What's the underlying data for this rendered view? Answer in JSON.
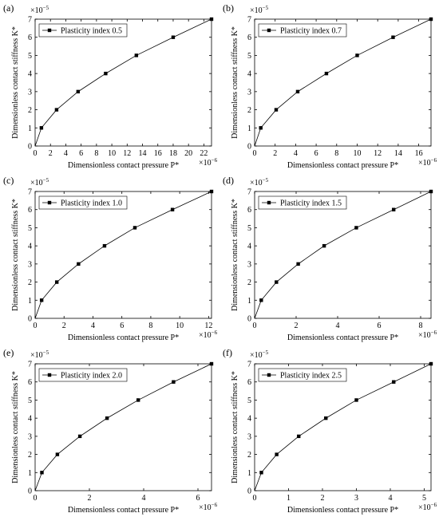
{
  "figure": {
    "panels": [
      "(a)",
      "(b)",
      "(c)",
      "(d)",
      "(e)",
      "(f)"
    ]
  },
  "chart_data": [
    {
      "panel": "(a)",
      "type": "line",
      "xlabel": "Dimensionless contact pressure P*",
      "ylabel": "Dimensionless contact stiffness K*",
      "x_multiplier": "×10",
      "x_exponent": "−6",
      "y_multiplier": "×10",
      "y_exponent": "−5",
      "xlim": [
        0,
        23
      ],
      "ylim": [
        0,
        7
      ],
      "xticks": [
        0,
        2,
        4,
        6,
        8,
        10,
        12,
        14,
        16,
        18,
        20,
        22
      ],
      "yticks": [
        0,
        1,
        2,
        3,
        4,
        5,
        6,
        7
      ],
      "legend": "top-left",
      "series": [
        {
          "name": "Plasticity index 0.5",
          "marker": "square",
          "x": [
            0,
            0.82,
            2.8,
            5.6,
            9.2,
            13.2,
            18,
            23
          ],
          "y": [
            0,
            1,
            2,
            3,
            4,
            5,
            6,
            7
          ]
        }
      ]
    },
    {
      "panel": "(b)",
      "type": "line",
      "xlabel": "Dimensionless contact pressure P*",
      "ylabel": "Dimensionless contact stiffness K*",
      "x_multiplier": "×10",
      "x_exponent": "−6",
      "y_multiplier": "×10",
      "y_exponent": "−5",
      "xlim": [
        0,
        17.2
      ],
      "ylim": [
        0,
        7
      ],
      "xticks": [
        0,
        2,
        4,
        6,
        8,
        10,
        12,
        14,
        16
      ],
      "yticks": [
        0,
        1,
        2,
        3,
        4,
        5,
        6,
        7
      ],
      "legend": "top-left",
      "series": [
        {
          "name": "Plasticity index 0.7",
          "marker": "square",
          "x": [
            0,
            0.6,
            2.1,
            4.2,
            7,
            10,
            13.5,
            17.2
          ],
          "y": [
            0,
            1,
            2,
            3,
            4,
            5,
            6,
            7
          ]
        }
      ]
    },
    {
      "panel": "(c)",
      "type": "line",
      "xlabel": "Dimensionless contact pressure P*",
      "ylabel": "Dimensionless contact stiffness K*",
      "x_multiplier": "×10",
      "x_exponent": "−6",
      "y_multiplier": "×10",
      "y_exponent": "−5",
      "xlim": [
        0,
        12.2
      ],
      "ylim": [
        0,
        7
      ],
      "xticks": [
        0,
        2,
        4,
        6,
        8,
        10,
        12
      ],
      "yticks": [
        0,
        1,
        2,
        3,
        4,
        5,
        6,
        7
      ],
      "legend": "top-left",
      "series": [
        {
          "name": "Plasticity index 1.0",
          "marker": "square",
          "x": [
            0,
            0.45,
            1.5,
            3,
            4.8,
            6.9,
            9.5,
            12.2
          ],
          "y": [
            0,
            1,
            2,
            3,
            4,
            5,
            6,
            7
          ]
        }
      ]
    },
    {
      "panel": "(d)",
      "type": "line",
      "xlabel": "Dimensionless contact pressure P*",
      "ylabel": "Dimensionless contact stiffness K*",
      "x_multiplier": "×10",
      "x_exponent": "−6",
      "y_multiplier": "×10",
      "y_exponent": "−5",
      "xlim": [
        0,
        8.5
      ],
      "ylim": [
        0,
        7
      ],
      "xticks": [
        0,
        2,
        4,
        6,
        8
      ],
      "yticks": [
        0,
        1,
        2,
        3,
        4,
        5,
        6,
        7
      ],
      "legend": "top-left",
      "series": [
        {
          "name": "Plasticity index 1.5",
          "marker": "square",
          "x": [
            0,
            0.32,
            1.05,
            2.1,
            3.35,
            4.9,
            6.7,
            8.5
          ],
          "y": [
            0,
            1,
            2,
            3,
            4,
            5,
            6,
            7
          ]
        }
      ]
    },
    {
      "panel": "(e)",
      "type": "line",
      "xlabel": "Dimensionless contact pressure P*",
      "ylabel": "Dimensionless contact stiffness K*",
      "x_multiplier": "×10",
      "x_exponent": "−6",
      "y_multiplier": "×10",
      "y_exponent": "−5",
      "xlim": [
        0,
        6.5
      ],
      "ylim": [
        0,
        7
      ],
      "xticks": [
        0,
        2,
        4,
        6
      ],
      "yticks": [
        0,
        1,
        2,
        3,
        4,
        5,
        6,
        7
      ],
      "legend": "top-left",
      "series": [
        {
          "name": "Plasticity index 2.0",
          "marker": "square",
          "x": [
            0,
            0.25,
            0.82,
            1.65,
            2.65,
            3.8,
            5.1,
            6.5
          ],
          "y": [
            0,
            1,
            2,
            3,
            4,
            5,
            6,
            7
          ]
        }
      ]
    },
    {
      "panel": "(f)",
      "type": "line",
      "xlabel": "Dimensionless contact pressure P*",
      "ylabel": "Dimensionless contact stiffness K*",
      "x_multiplier": "×10",
      "x_exponent": "−6",
      "y_multiplier": "×10",
      "y_exponent": "−5",
      "xlim": [
        0,
        5.2
      ],
      "ylim": [
        0,
        7
      ],
      "xticks": [
        0,
        1,
        2,
        3,
        4,
        5
      ],
      "yticks": [
        0,
        1,
        2,
        3,
        4,
        5,
        6,
        7
      ],
      "legend": "top-left",
      "series": [
        {
          "name": "Plasticity index 2.5",
          "marker": "square",
          "x": [
            0,
            0.2,
            0.65,
            1.3,
            2.1,
            3,
            4.1,
            5.2
          ],
          "y": [
            0,
            1,
            2,
            3,
            4,
            5,
            6,
            7
          ]
        }
      ]
    }
  ]
}
